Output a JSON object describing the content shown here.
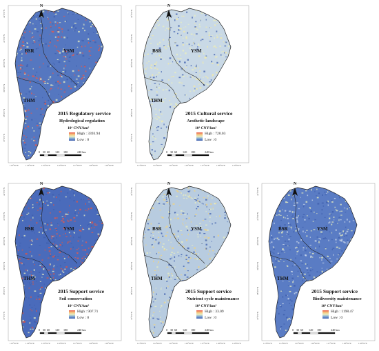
{
  "north_label": "N",
  "regions": {
    "a": "BSR",
    "b": "YSM",
    "c": "THM"
  },
  "legend_unit": "10⁴ CNY/km²",
  "legend_low": "Low : 0",
  "scale_labels": [
    "0",
    "30",
    "60",
    "120",
    "180",
    "240 km"
  ],
  "lon_ticks": [
    "113°0'0\"E",
    "114°0'0\"E",
    "115°0'0\"E",
    "116°0'0\"E",
    "117°0'0\"E",
    "118°0'0\"E",
    "119°0'0\"E"
  ],
  "lat_ticks": [
    "42°0'0\"N",
    "41°0'0\"N",
    "40°0'0\"N",
    "39°0'0\"N",
    "38°0'0\"N",
    "37°0'0\"N"
  ],
  "colors": {
    "high": "#e8584a",
    "low": "#3f5fae",
    "mid": "#e8eec0"
  },
  "panels": [
    {
      "title": "2015 Regulatory service",
      "subtitle": "Hydrological regulation",
      "high": "High : 3393.94",
      "base_color": "#5577c0",
      "hot_color": "#e8584a"
    },
    {
      "title": "2015 Cultural service",
      "subtitle": "Aesthetic landscape",
      "high": "High : 720.03",
      "base_color": "#c9d9e6",
      "hot_color": "#f3e9a6"
    },
    {
      "title": "2015 Support service",
      "subtitle": "Soil conservation",
      "high": "High : 907.71",
      "base_color": "#4a6bbb",
      "hot_color": "#e4533f"
    },
    {
      "title": "2015 Support service",
      "subtitle": "Nutrient cycle maintenance",
      "high": "High : 33.09",
      "base_color": "#b8cce0",
      "hot_color": "#f1d37e"
    },
    {
      "title": "2015 Support service",
      "subtitle": "Biodiversity maintenance",
      "high": "High : 1198.47",
      "base_color": "#5a7cc4",
      "hot_color": "#c9d7ea"
    }
  ]
}
